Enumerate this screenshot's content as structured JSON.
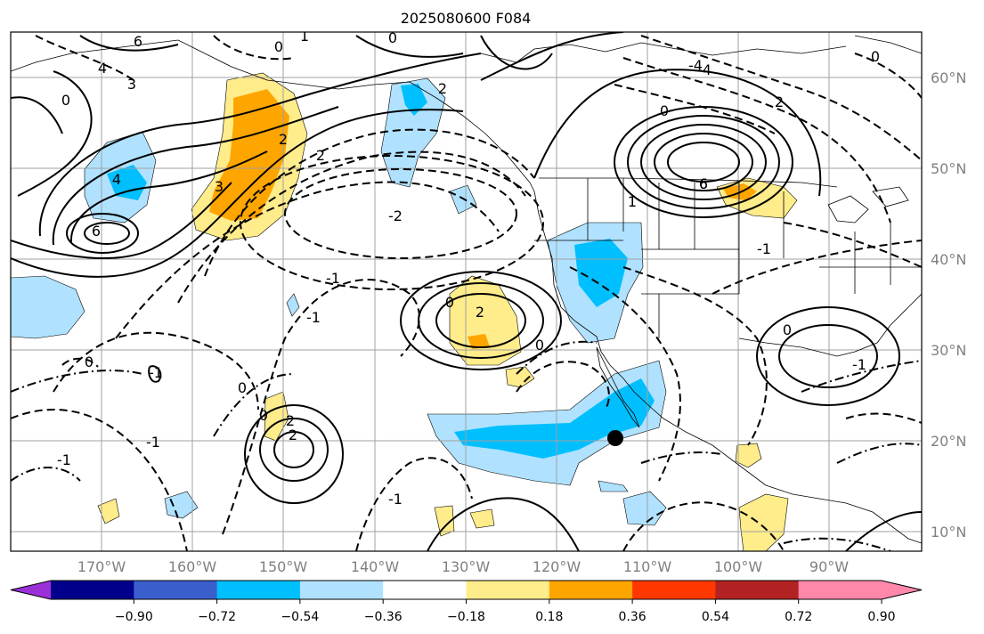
{
  "title": "2025080600 F084",
  "map": {
    "lat_labels": [
      "60°N",
      "50°N",
      "40°N",
      "30°N",
      "20°N",
      "10°N"
    ],
    "lon_labels": [
      "170°W",
      "160°W",
      "150°W",
      "140°W",
      "130°W",
      "120°W",
      "110°W",
      "100°W",
      "90°W"
    ],
    "contour_labels": [
      "6",
      "4",
      "3",
      "0",
      "1",
      "0",
      "0",
      "2",
      "3",
      "2",
      "4",
      "6",
      "2",
      "6",
      "-4",
      "-2",
      "-1",
      "-1",
      "2",
      "0",
      "0",
      "-1",
      "2",
      "2",
      "-1",
      "-1",
      "0",
      "0",
      "-1",
      "0",
      "0",
      "-4",
      "2",
      "6",
      "1",
      "0",
      "0",
      "-1",
      "-1"
    ],
    "marker": "storm-position"
  },
  "colorbar": {
    "ticks": [
      "−0.90",
      "−0.72",
      "−0.54",
      "−0.36",
      "−0.18",
      "0.18",
      "0.36",
      "0.54",
      "0.72",
      "0.90"
    ],
    "colors": [
      "#9b30d9",
      "#00008b",
      "#3a5fcd",
      "#00bfff",
      "#b0e2ff",
      "#ffffff",
      "#ffec8b",
      "#ffa500",
      "#ff3800",
      "#b22222",
      "#ff88aa",
      "#ff88aa"
    ]
  }
}
